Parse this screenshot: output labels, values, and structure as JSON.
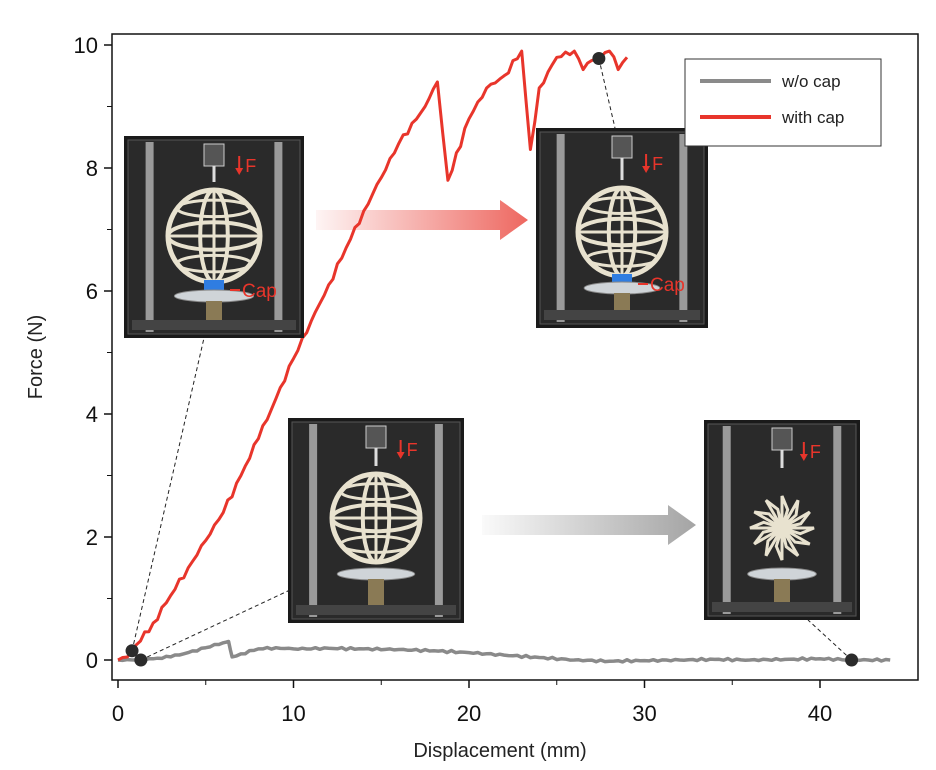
{
  "chart_data": {
    "type": "line",
    "title": "",
    "xlabel": "Displacement (mm)",
    "ylabel": "Force (N)",
    "xlim": [
      0,
      44
    ],
    "ylim": [
      0,
      10
    ],
    "xticks": [
      0,
      10,
      20,
      30,
      40
    ],
    "yticks": [
      0,
      2,
      4,
      6,
      8,
      10
    ],
    "xtick_labels": [
      "0",
      "10",
      "20",
      "30",
      "40"
    ],
    "ytick_labels": [
      "0",
      "2",
      "4",
      "6",
      "8",
      "10"
    ],
    "legend": {
      "position": "top-right",
      "entries": [
        "w/o cap",
        "with cap"
      ]
    },
    "series": [
      {
        "name": "w/o cap",
        "color": "#8a8a8a",
        "x": [
          0,
          1,
          2,
          3,
          4,
          5,
          6,
          6.3,
          6.5,
          7,
          8,
          9,
          10,
          12,
          14,
          16,
          18,
          20,
          22,
          24,
          26,
          28,
          30,
          32,
          34,
          36,
          38,
          40,
          42,
          44
        ],
        "y": [
          0,
          0,
          0.02,
          0.05,
          0.12,
          0.2,
          0.28,
          0.3,
          0.05,
          0.1,
          0.18,
          0.2,
          0.18,
          0.19,
          0.18,
          0.17,
          0.15,
          0.12,
          0.08,
          0.04,
          0.0,
          -0.02,
          -0.01,
          0.0,
          0.01,
          0.0,
          0.01,
          0.02,
          0.0,
          0.0
        ]
      },
      {
        "name": "with cap",
        "color": "#e8352b",
        "x": [
          0,
          0.8,
          2,
          4,
          6,
          8,
          10,
          12,
          14,
          16,
          17.5,
          18.2,
          18.8,
          20,
          21,
          22,
          23,
          23.5,
          24,
          25,
          26,
          26.5,
          27,
          27.5,
          28,
          28.5,
          29
        ],
        "y": [
          0,
          0.15,
          0.6,
          1.5,
          2.4,
          3.6,
          4.9,
          6.1,
          7.3,
          8.4,
          9.0,
          9.4,
          7.8,
          8.8,
          9.3,
          9.5,
          9.9,
          8.3,
          9.3,
          9.8,
          9.9,
          9.6,
          9.75,
          9.8,
          9.9,
          9.6,
          9.8
        ]
      }
    ],
    "markers": [
      {
        "series": "with cap",
        "x": 0.8,
        "y": 0.15
      },
      {
        "series": "with cap",
        "x": 27.4,
        "y": 9.78
      },
      {
        "series": "w/o cap",
        "x": 1.3,
        "y": 0.0
      },
      {
        "series": "w/o cap",
        "x": 41.8,
        "y": 0.0
      }
    ]
  },
  "insets": {
    "with_cap_start": {
      "force_label": "F",
      "cap_label": "Cap"
    },
    "with_cap_end": {
      "force_label": "F",
      "cap_label": "Cap"
    },
    "without_cap_start": {
      "force_label": "F"
    },
    "without_cap_end": {
      "force_label": "F"
    }
  },
  "colors": {
    "with_cap": "#e8352b",
    "without_cap": "#8a8a8a",
    "cap_blue": "#2f7de1",
    "photo_bg": "#1a1a1a"
  }
}
